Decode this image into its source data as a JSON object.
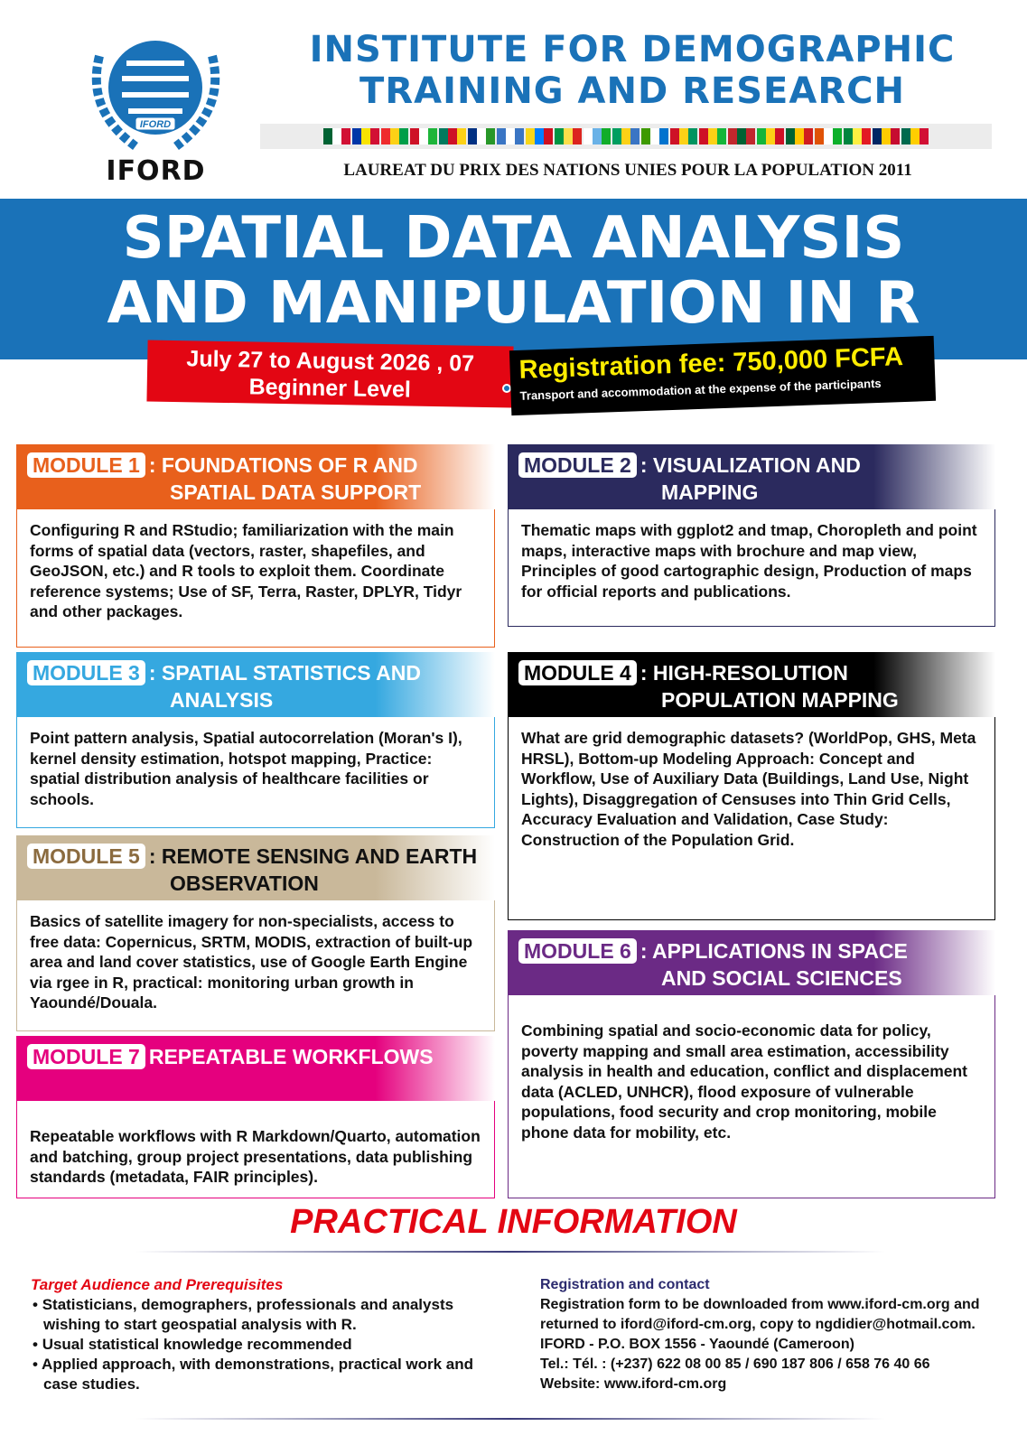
{
  "header": {
    "logo_text": "IFORD",
    "logo_ribbon": "IFORD",
    "institute": "INSTITUTE FOR DEMOGRAPHIC TRAINING AND RESEARCH",
    "laureat": "LAUREAT DU PRIX DES NATIONS UNIES POUR LA POPULATION 2011",
    "flags": [
      [
        "#006233",
        "#fff",
        "#d21034"
      ],
      [
        "#0036a8",
        "#f9e300",
        "#d21034"
      ],
      [
        "#ef2b2d",
        "#fcd116",
        "#009e49"
      ],
      [
        "#ce1126",
        "#fff",
        "#1eb53a"
      ],
      [
        "#007a5e",
        "#ce1126",
        "#fcd116"
      ],
      [
        "#003082",
        "#fff",
        "#289728"
      ],
      [
        "#3a75c4",
        "#fff",
        "#3a75c4"
      ],
      [
        "#f7d618",
        "#007fff",
        "#ce1021"
      ],
      [
        "#009543",
        "#fbde4a",
        "#dc241f"
      ],
      [
        "#fff",
        "#6ab2e7",
        "#12ad2b"
      ],
      [
        "#009e60",
        "#fcd116",
        "#3a75c4"
      ],
      [
        "#3e9a00",
        "#fff",
        "#0073ce"
      ],
      [
        "#ce1126",
        "#fcd116",
        "#009460"
      ],
      [
        "#ce1126",
        "#fcd116",
        "#14b53a"
      ],
      [
        "#c1272d",
        "#006233",
        "#c1272d"
      ],
      [
        "#14b53a",
        "#fcd116",
        "#ce1126"
      ],
      [
        "#006233",
        "#ffc400",
        "#d01c1f"
      ],
      [
        "#e05206",
        "#fff",
        "#0db02b"
      ],
      [
        "#00853f",
        "#fdef42",
        "#e31b23"
      ],
      [
        "#002664",
        "#fecb00",
        "#c60c30"
      ],
      [
        "#006a4e",
        "#ffce00",
        "#d21034"
      ]
    ]
  },
  "banner": {
    "title_line1": "SPATIAL DATA ANALYSIS",
    "title_line2": "AND MANIPULATION IN R",
    "date": "July 27 to August 2026 , 07",
    "level": "Beginner Level",
    "fee": "Registration fee: 750,000 FCFA",
    "fee_note": "Transport and accommodation at the expense of the participants"
  },
  "modules": [
    {
      "label": "MODULE 1",
      "title1": ": FOUNDATIONS OF R AND",
      "title2": "SPATIAL DATA SUPPORT",
      "color": "#e8601c",
      "body": "Configuring R and RStudio; familiarization with the main forms of spatial data (vectors, raster, shapefiles, and GeoJSON, etc.)  and R tools to exploit them. Coordinate reference systems;  Use of SF, Terra, Raster, DPLYR, Tidyr and other packages."
    },
    {
      "label": "MODULE 2",
      "title1": ": VISUALIZATION AND",
      "title2": "MAPPING",
      "color": "#2b2a5e",
      "body": "Thematic maps with ggplot2 and tmap, Choropleth and point maps, interactive maps with brochure and map view, Principles of good cartographic design, Production of maps for official reports and publications."
    },
    {
      "label": "MODULE 3",
      "title1": ": SPATIAL STATISTICS AND",
      "title2": "ANALYSIS",
      "color": "#35a8e0",
      "body": "Point pattern analysis, Spatial autocorrelation (Moran's I), kernel density estimation, hotspot mapping, Practice: spatial distribution analysis of healthcare facilities or schools."
    },
    {
      "label": "MODULE 4",
      "title1": ": HIGH-RESOLUTION",
      "title2": "POPULATION MAPPING",
      "color": "#000000",
      "body": "What are grid demographic datasets? (WorldPop, GHS, Meta HRSL), Bottom-up Modeling Approach: Concept and Workflow, Use of Auxiliary Data (Buildings, Land Use, Night Lights), Disaggregation of Censuses into Thin Grid Cells, Accuracy Evaluation and Validation, Case Study: Construction of the Population Grid."
    },
    {
      "label": "MODULE 5",
      "title1": ": REMOTE SENSING AND EARTH",
      "title2": "OBSERVATION",
      "color": "#c9b89a",
      "body": "Basics of satellite imagery for non-specialists, access to free data: Copernicus, SRTM, MODIS, extraction of built-up area and land cover statistics, use of Google Earth Engine via rgee in R, practical: monitoring urban growth in Yaoundé/Douala."
    },
    {
      "label": "MODULE 6",
      "title1": ": APPLICATIONS IN SPACE",
      "title2": "AND SOCIAL SCIENCES",
      "color": "#6b2a85",
      "body": "Combining spatial and socio-economic data for policy, poverty mapping and small area estimation, accessibility analysis in health and education, conflict and displacement data (ACLED, UNHCR), flood exposure of vulnerable populations, food security and crop monitoring, mobile phone data for mobility, etc."
    },
    {
      "label": "MODULE 7",
      "title1": "REPEATABLE WORKFLOWS",
      "title2": "",
      "color": "#e5007e",
      "body": "Repeatable workflows with R Markdown/Quarto, automation and batching, group project presentations, data publishing standards (metadata, FAIR principles)."
    }
  ],
  "practical": {
    "title": "PRACTICAL INFORMATION",
    "audience_title": "Target Audience and Prerequisites",
    "audience": [
      "Statisticians, demographers, professionals and analysts wishing to start geospatial analysis with R.",
      "Usual statistical knowledge recommended",
      "Applied approach, with demonstrations, practical work and case studies."
    ],
    "contact_title": "Registration and contact",
    "contact": [
      "Registration form to be downloaded from www.iford-cm.org and returned to iford@iford-cm.org, copy to ngdidier@hotmail.com.",
      "IFORD - P.O. BOX 1556 - Yaoundé (Cameroon)",
      "Tel.: Tél. : (+237) 622 08 00 85 / 690 187 806 / 658 76 40 66",
      "Website: www.iford-cm.org"
    ]
  }
}
